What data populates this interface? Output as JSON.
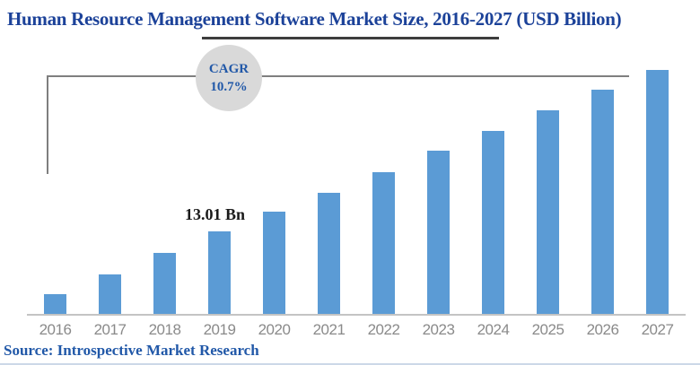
{
  "title": {
    "text": "Human Resource Management Software Market Size, 2016-2027 (USD Billion)"
  },
  "cagr_badge": {
    "line1": "CAGR",
    "line2": "10.7%"
  },
  "annotation": {
    "label": "13.01 Bn"
  },
  "source": {
    "text": "Source: Introspective Market Research"
  },
  "colors": {
    "title_color": "#1c4299",
    "accent_blue": "#2158a8",
    "bar_color": "#5b9bd5",
    "circle_bg": "#d9d9d9",
    "bracket_line": "#7f7f7f",
    "underline": "#3d3d3d",
    "axis_line": "#c4c4c4",
    "tick_label": "#8a8a8a",
    "annotation_color": "#1a1a1a",
    "bottom_rule": "#ccd8e8"
  },
  "chart_data": {
    "type": "bar",
    "title": "Human Resource Management Software Market Size, 2016-2027 (USD Billion)",
    "categories": [
      "2016",
      "2017",
      "2018",
      "2019",
      "2020",
      "2021",
      "2022",
      "2023",
      "2024",
      "2025",
      "2026",
      "2027"
    ],
    "values": [
      3.2,
      6.3,
      9.6,
      13.01,
      16.0,
      19.0,
      22.2,
      25.5,
      28.6,
      31.8,
      35.0,
      38.1
    ],
    "unit": "USD Billion",
    "cagr": "10.7%",
    "data_labels": [
      {
        "category": "2019",
        "text": "13.01 Bn"
      }
    ],
    "xlabel": "",
    "ylabel": "",
    "ylim": [
      0,
      40
    ],
    "grid": false,
    "legend": "none",
    "bar_color": "#5b9bd5"
  }
}
